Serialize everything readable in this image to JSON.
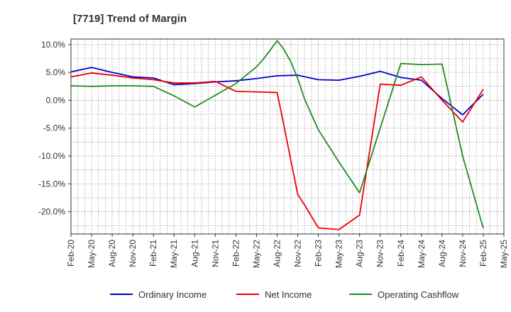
{
  "chart_data": {
    "type": "line",
    "title": "[7719]  Trend of Margin",
    "xlabel": "",
    "ylabel": "",
    "ylim": [
      -24,
      11
    ],
    "y_ticks": [
      10,
      5,
      0,
      -5,
      -10,
      -15,
      -20
    ],
    "y_tick_labels": [
      "10.0%",
      "5.0%",
      "0.0%",
      "-5.0%",
      "-10.0%",
      "-15.0%",
      "-20.0%"
    ],
    "x_ticks": [
      "Feb-20",
      "May-20",
      "Aug-20",
      "Nov-20",
      "Feb-21",
      "May-21",
      "Aug-21",
      "Nov-21",
      "Feb-22",
      "May-22",
      "Aug-22",
      "Nov-22",
      "Feb-23",
      "May-23",
      "Aug-23",
      "Nov-23",
      "Feb-24",
      "May-24",
      "Aug-24",
      "Nov-24",
      "Feb-25",
      "May-25"
    ],
    "grid": true,
    "legend_position": "bottom",
    "series": [
      {
        "name": "Ordinary Income",
        "color": "#0000cc",
        "points": [
          [
            "Feb-20",
            5.1
          ],
          [
            "May-20",
            5.9
          ],
          [
            "Aug-20",
            5.0
          ],
          [
            "Nov-20",
            4.2
          ],
          [
            "Feb-21",
            4.0
          ],
          [
            "May-21",
            2.8
          ],
          [
            "Aug-21",
            3.0
          ],
          [
            "Nov-21",
            3.3
          ],
          [
            "Feb-22",
            3.5
          ],
          [
            "May-22",
            3.9
          ],
          [
            "Aug-22",
            4.4
          ],
          [
            "Nov-22",
            4.5
          ],
          [
            "Feb-23",
            3.7
          ],
          [
            "May-23",
            3.6
          ],
          [
            "Aug-23",
            4.3
          ],
          [
            "Nov-23",
            5.2
          ],
          [
            "Feb-24",
            4.1
          ],
          [
            "May-24",
            3.6
          ],
          [
            "Aug-24",
            0.3
          ],
          [
            "Nov-24",
            -2.6
          ],
          [
            "Feb-25",
            1.1
          ]
        ]
      },
      {
        "name": "Net Income",
        "color": "#ee0000",
        "points": [
          [
            "Feb-20",
            4.2
          ],
          [
            "May-20",
            4.9
          ],
          [
            "Aug-20",
            4.5
          ],
          [
            "Nov-20",
            4.0
          ],
          [
            "Feb-21",
            3.7
          ],
          [
            "May-21",
            3.1
          ],
          [
            "Aug-21",
            3.1
          ],
          [
            "Nov-21",
            3.4
          ],
          [
            "Feb-22",
            1.6
          ],
          [
            "May-22",
            1.5
          ],
          [
            "Aug-22",
            1.4
          ],
          [
            "Sep-22",
            -4.6
          ],
          [
            "Oct-22",
            -10.8
          ],
          [
            "Nov-22",
            -16.9
          ],
          [
            "Dec-22",
            -18.8
          ],
          [
            "Feb-23",
            -22.9
          ],
          [
            "May-23",
            -23.2
          ],
          [
            "Aug-23",
            -20.6
          ],
          [
            "Nov-23",
            2.9
          ],
          [
            "Feb-24",
            2.7
          ],
          [
            "May-24",
            4.2
          ],
          [
            "Aug-24",
            0.0
          ],
          [
            "Nov-24",
            -3.9
          ],
          [
            "Feb-25",
            2.0
          ]
        ]
      },
      {
        "name": "Operating Cashflow",
        "color": "#228b22",
        "points": [
          [
            "Feb-20",
            2.6
          ],
          [
            "May-20",
            2.5
          ],
          [
            "Aug-20",
            2.6
          ],
          [
            "Nov-20",
            2.6
          ],
          [
            "Feb-21",
            2.5
          ],
          [
            "May-21",
            0.8
          ],
          [
            "Aug-21",
            -1.2
          ],
          [
            "Nov-21",
            0.9
          ],
          [
            "Feb-22",
            3.0
          ],
          [
            "May-22",
            6.0
          ],
          [
            "Jun-22",
            7.4
          ],
          [
            "Jul-22",
            9.0
          ],
          [
            "Aug-22",
            10.7
          ],
          [
            "Sep-22",
            9.1
          ],
          [
            "Oct-22",
            6.9
          ],
          [
            "Nov-22",
            3.9
          ],
          [
            "Dec-22",
            0.2
          ],
          [
            "Feb-23",
            -5.3
          ],
          [
            "May-23",
            -11.1
          ],
          [
            "Aug-23",
            -16.6
          ],
          [
            "Nov-23",
            -5.0
          ],
          [
            "Feb-24",
            6.6
          ],
          [
            "May-24",
            6.4
          ],
          [
            "Aug-24",
            6.5
          ],
          [
            "Nov-24",
            -10.0
          ],
          [
            "Feb-25",
            -23.0
          ]
        ]
      }
    ]
  }
}
